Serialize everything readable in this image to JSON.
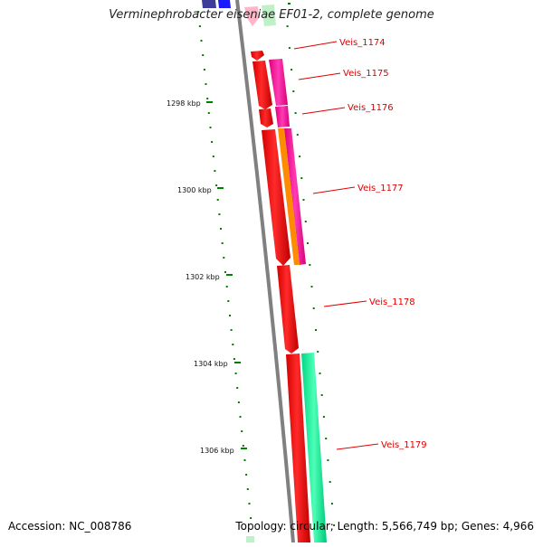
{
  "title": "Verminephrobacter eiseniae EF01-2, complete genome",
  "footer": {
    "accession": "Accession: NC_008786",
    "info": "Topology: circular; Length: 5,566,749 bp; Genes: 4,966"
  },
  "position_ticks": [
    "1298 kbp",
    "1300 kbp",
    "1302 kbp",
    "1304 kbp",
    "1306 kbp"
  ],
  "genes": [
    "Veis_1174",
    "Veis_1175",
    "Veis_1176",
    "Veis_1177",
    "Veis_1178",
    "Veis_1179"
  ],
  "colors": {
    "backbone": "#808080",
    "cds_forward": "#ff0000",
    "feature_magenta": "#ff1aa8",
    "feature_orange": "#ff8c00",
    "feature_green": "#1aff9c",
    "feature_blue": "#1a1aff",
    "tick": "#008000",
    "label": "#e00000"
  }
}
